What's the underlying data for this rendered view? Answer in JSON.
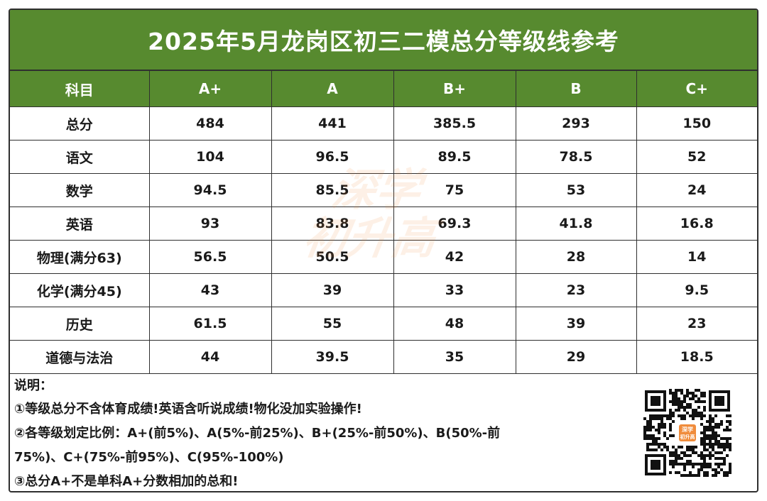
{
  "title": "2025年5月龙岗区初三二模总分等级线参考",
  "table": {
    "headers": [
      "科目",
      "A+",
      "A",
      "B+",
      "B",
      "C+"
    ],
    "rows": [
      [
        "总分",
        "484",
        "441",
        "385.5",
        "293",
        "150"
      ],
      [
        "语文",
        "104",
        "96.5",
        "89.5",
        "78.5",
        "52"
      ],
      [
        "数学",
        "94.5",
        "85.5",
        "75",
        "53",
        "24"
      ],
      [
        "英语",
        "93",
        "83.8",
        "69.3",
        "41.8",
        "16.8"
      ],
      [
        "物理(满分63)",
        "56.5",
        "50.5",
        "42",
        "28",
        "14"
      ],
      [
        "化学(满分45)",
        "43",
        "39",
        "33",
        "23",
        "9.5"
      ],
      [
        "历史",
        "61.5",
        "55",
        "48",
        "39",
        "23"
      ],
      [
        "道德与法治",
        "44",
        "39.5",
        "35",
        "29",
        "18.5"
      ]
    ]
  },
  "watermark": {
    "line1": "深学",
    "line2": "初升高"
  },
  "notes": {
    "label": "说明：",
    "line1": "①等级总分不含体育成绩!英语含听说成绩!物化没加实验操作!",
    "line2a": "②各等级划定比例：A+(前5%)、A(5%-前25%)、B+(25%-前50%)、B(50%-前",
    "line2b": "75%)、C+(75%-前95%)、C(95%-100%)",
    "line3": "③总分A+不是单科A+分数相加的总和!"
  },
  "qr": {
    "icon": "qr-code-icon",
    "logo_line1": "深学",
    "logo_line2": "初升高"
  },
  "colors": {
    "header_green": "#578a2f",
    "border": "#2f2f2f",
    "watermark": "#f08c3c"
  }
}
